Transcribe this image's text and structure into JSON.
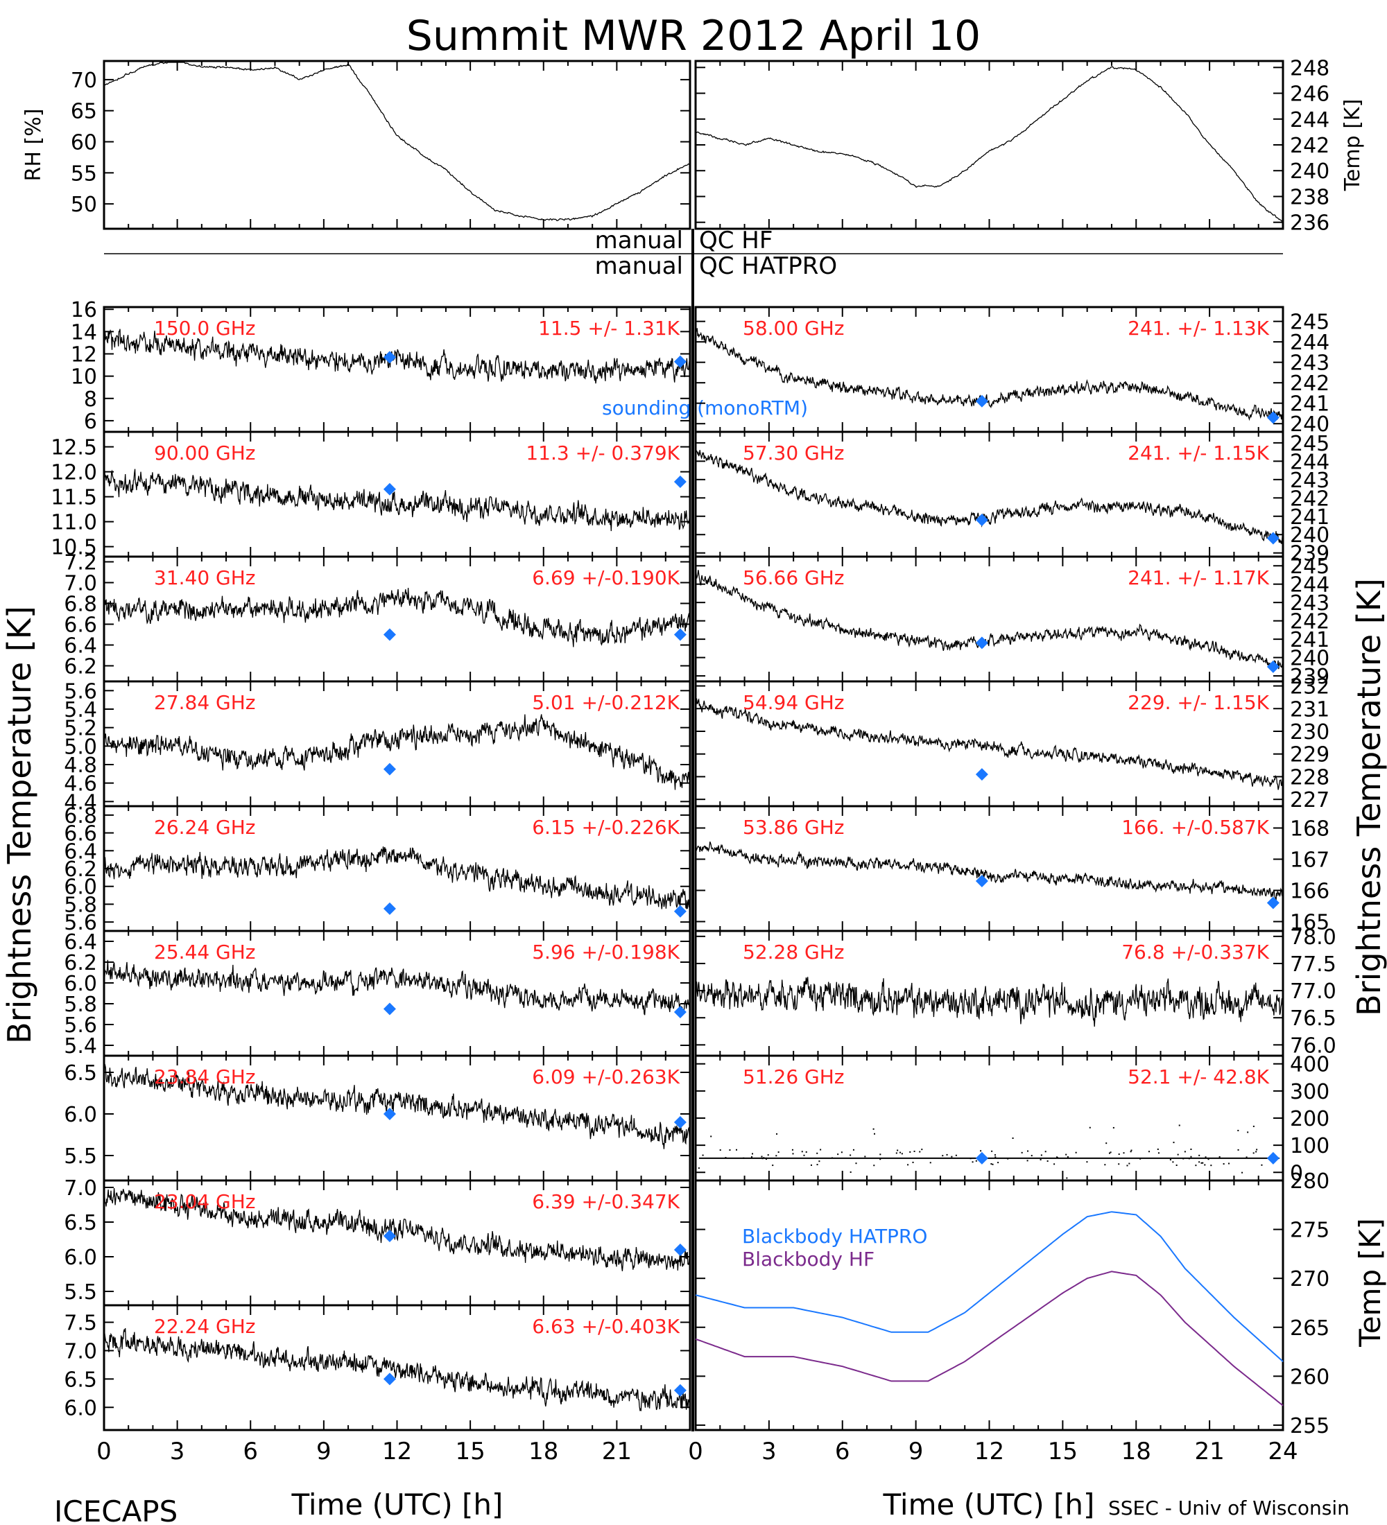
{
  "title": "Summit MWR 2012 April 10",
  "footer_left": "ICECAPS",
  "footer_right": "SSEC - Univ of Wisconsin",
  "x_label": "Time (UTC) [h]",
  "x_ticks": [
    "0",
    "3",
    "6",
    "9",
    "12",
    "15",
    "18",
    "21",
    "24"
  ],
  "left_axis_label": "Brightness Temperature [K]",
  "right_axis_label": "Brightness Temperature [K]",
  "qc": {
    "left_1": "manual",
    "right_1": "QC HF",
    "left_2": "manual",
    "right_2": "QC HATPRO"
  },
  "colors": {
    "annotation": "#ff2020",
    "sounding": "#1a78ff",
    "bb_hatpro": "#1a78ff",
    "bb_hf": "#7b2a8c",
    "trace": "#000000"
  },
  "chart_data": [
    {
      "type": "line",
      "name": "RH",
      "ylabel": "RH [%]",
      "yticks": [
        "50",
        "55",
        "60",
        "65",
        "70"
      ],
      "ylim": [
        46,
        73
      ],
      "x": [
        0,
        1,
        2,
        3,
        4,
        5,
        6,
        7,
        8,
        9,
        10,
        11,
        12,
        13,
        14,
        15,
        16,
        17,
        18,
        19,
        20,
        21,
        22,
        23,
        24
      ],
      "values": [
        69,
        71,
        72.5,
        73,
        72,
        72,
        71.5,
        72,
        70,
        71.5,
        72.5,
        67,
        61,
        58,
        55.5,
        52,
        49,
        48,
        47.5,
        47.5,
        48,
        50,
        52,
        54.5,
        56.5
      ]
    },
    {
      "type": "line",
      "name": "Temp",
      "ylabel": "Temp [K]",
      "yticks": [
        "236",
        "238",
        "240",
        "242",
        "244",
        "246",
        "248"
      ],
      "ylim": [
        235.5,
        248.5
      ],
      "x": [
        0,
        1,
        2,
        3,
        4,
        5,
        6,
        7,
        8,
        9,
        10,
        11,
        12,
        13,
        14,
        15,
        16,
        17,
        18,
        19,
        20,
        21,
        22,
        23,
        24
      ],
      "values": [
        243,
        242.5,
        242,
        242.5,
        242,
        241.5,
        241.3,
        240.8,
        240,
        238.8,
        238.8,
        240,
        241.5,
        242.5,
        244,
        245.5,
        247,
        248,
        247.8,
        246.5,
        244.5,
        242,
        240,
        237.5,
        236
      ]
    },
    {
      "type": "line",
      "freq": "150.0 GHz",
      "stat": "11.5 +/- 1.31K",
      "sounding_label": "sounding (monoRTM)",
      "yticks": [
        "6",
        "8",
        "10",
        "12",
        "14",
        "16"
      ],
      "ylim": [
        5,
        16.2
      ],
      "x": [
        0,
        3,
        6,
        9,
        12,
        15,
        18,
        21,
        24
      ],
      "values": [
        13.5,
        12.8,
        12,
        11.5,
        11.3,
        10.8,
        10.5,
        10.5,
        10.5
      ],
      "sounding": [
        [
          11.7,
          11.7
        ],
        [
          23.6,
          11.3
        ]
      ]
    },
    {
      "type": "line",
      "freq": "90.00 GHz",
      "stat": "11.3 +/- 0.379K",
      "yticks": [
        "10.5",
        "11.0",
        "11.5",
        "12.0",
        "12.5"
      ],
      "ylim": [
        10.3,
        12.8
      ],
      "x": [
        0,
        3,
        6,
        9,
        12,
        15,
        18,
        21,
        24
      ],
      "values": [
        11.8,
        11.75,
        11.6,
        11.45,
        11.35,
        11.3,
        11.2,
        11.1,
        11.05
      ],
      "sounding": [
        [
          11.7,
          11.65
        ],
        [
          23.6,
          11.8
        ]
      ]
    },
    {
      "type": "line",
      "freq": "31.40 GHz",
      "stat": "6.69 +/-0.190K",
      "yticks": [
        "6.2",
        "6.4",
        "6.6",
        "6.8",
        "7.0",
        "7.2"
      ],
      "ylim": [
        6.05,
        7.25
      ],
      "x": [
        0,
        3,
        6,
        9,
        12,
        15,
        18,
        21,
        24
      ],
      "values": [
        6.75,
        6.75,
        6.75,
        6.75,
        6.85,
        6.75,
        6.55,
        6.5,
        6.65
      ],
      "sounding": [
        [
          11.7,
          6.5
        ],
        [
          23.6,
          6.5
        ]
      ]
    },
    {
      "type": "line",
      "freq": "27.84 GHz",
      "stat": "5.01 +/-0.212K",
      "yticks": [
        "4.4",
        "4.6",
        "4.8",
        "5.0",
        "5.2",
        "5.4",
        "5.6"
      ],
      "ylim": [
        4.35,
        5.7
      ],
      "x": [
        0,
        3,
        6,
        9,
        12,
        15,
        18,
        21,
        24
      ],
      "values": [
        5.05,
        5.0,
        4.85,
        4.9,
        5.1,
        5.15,
        5.2,
        4.9,
        4.6
      ],
      "sounding": [
        [
          11.7,
          4.75
        ]
      ]
    },
    {
      "type": "line",
      "freq": "26.24 GHz",
      "stat": "6.15 +/-0.226K",
      "yticks": [
        "5.6",
        "5.8",
        "6.0",
        "6.2",
        "6.4",
        "6.6",
        "6.8"
      ],
      "ylim": [
        5.5,
        6.9
      ],
      "x": [
        0,
        3,
        6,
        9,
        12,
        15,
        18,
        21,
        24
      ],
      "values": [
        6.2,
        6.25,
        6.2,
        6.3,
        6.35,
        6.15,
        6.0,
        5.9,
        5.85
      ],
      "sounding": [
        [
          11.7,
          5.75
        ],
        [
          23.6,
          5.72
        ]
      ]
    },
    {
      "type": "line",
      "freq": "25.44 GHz",
      "stat": "5.96 +/-0.198K",
      "yticks": [
        "5.4",
        "5.6",
        "5.8",
        "6.0",
        "6.2",
        "6.4"
      ],
      "ylim": [
        5.3,
        6.5
      ],
      "x": [
        0,
        3,
        6,
        9,
        12,
        15,
        18,
        21,
        24
      ],
      "values": [
        6.1,
        6.05,
        6.0,
        6.0,
        6.05,
        5.95,
        5.85,
        5.85,
        5.8
      ],
      "sounding": [
        [
          11.7,
          5.75
        ],
        [
          23.6,
          5.72
        ]
      ]
    },
    {
      "type": "line",
      "freq": "23.84 GHz",
      "stat": "6.09 +/-0.263K",
      "yticks": [
        "5.5",
        "6.0",
        "6.5"
      ],
      "ylim": [
        5.2,
        6.7
      ],
      "x": [
        0,
        3,
        6,
        9,
        12,
        15,
        18,
        21,
        24
      ],
      "values": [
        6.45,
        6.35,
        6.25,
        6.15,
        6.15,
        6.05,
        5.95,
        5.85,
        5.75
      ],
      "sounding": [
        [
          11.7,
          6.0
        ],
        [
          23.6,
          5.9
        ]
      ]
    },
    {
      "type": "line",
      "freq": "23.04 GHz",
      "stat": "6.39 +/-0.347K",
      "yticks": [
        "5.5",
        "6.0",
        "6.5",
        "7.0"
      ],
      "ylim": [
        5.3,
        7.1
      ],
      "x": [
        0,
        3,
        6,
        9,
        12,
        15,
        18,
        21,
        24
      ],
      "values": [
        6.9,
        6.75,
        6.55,
        6.5,
        6.4,
        6.2,
        6.1,
        6.0,
        5.9
      ],
      "sounding": [
        [
          11.7,
          6.3
        ],
        [
          23.6,
          6.1
        ]
      ]
    },
    {
      "type": "line",
      "freq": "22.24 GHz",
      "stat": "6.63 +/-0.403K",
      "yticks": [
        "6.0",
        "6.5",
        "7.0",
        "7.5"
      ],
      "ylim": [
        5.6,
        7.8
      ],
      "x": [
        0,
        3,
        6,
        9,
        12,
        15,
        18,
        21,
        24
      ],
      "values": [
        7.2,
        7.1,
        6.9,
        6.8,
        6.7,
        6.45,
        6.3,
        6.2,
        6.15
      ],
      "sounding": [
        [
          11.7,
          6.5
        ],
        [
          23.6,
          6.3
        ]
      ]
    },
    {
      "type": "line",
      "freq": "58.00 GHz",
      "stat": "241. +/- 1.13K",
      "yticks": [
        "240",
        "241",
        "242",
        "243",
        "244",
        "245"
      ],
      "ylim": [
        239.6,
        245.7
      ],
      "x": [
        0,
        2,
        4,
        6,
        8,
        10,
        12,
        14,
        16,
        17,
        18,
        20,
        22,
        24
      ],
      "values": [
        244.5,
        243.2,
        242.2,
        241.8,
        241.5,
        241.1,
        241.1,
        241.6,
        241.8,
        241.7,
        241.8,
        241.3,
        240.7,
        240.3
      ],
      "sounding": [
        [
          11.7,
          241.1
        ],
        [
          23.6,
          240.3
        ]
      ]
    },
    {
      "type": "line",
      "freq": "57.30 GHz",
      "stat": "241. +/- 1.15K",
      "yticks": [
        "239",
        "240",
        "241",
        "242",
        "243",
        "244",
        "245"
      ],
      "ylim": [
        238.8,
        245.6
      ],
      "x": [
        0,
        2,
        4,
        6,
        8,
        10,
        12,
        14,
        16,
        17,
        18,
        20,
        22,
        24
      ],
      "values": [
        244.5,
        243.4,
        242.3,
        241.7,
        241.3,
        240.8,
        240.9,
        241.3,
        241.6,
        241.5,
        241.6,
        241.2,
        240.5,
        239.8
      ],
      "sounding": [
        [
          11.7,
          240.8
        ],
        [
          23.6,
          239.8
        ]
      ]
    },
    {
      "type": "line",
      "freq": "56.66 GHz",
      "stat": "241. +/- 1.17K",
      "yticks": [
        "239",
        "240",
        "241",
        "242",
        "243",
        "244",
        "245"
      ],
      "ylim": [
        238.7,
        245.5
      ],
      "x": [
        0,
        2,
        4,
        6,
        8,
        10,
        12,
        14,
        16,
        17,
        18,
        20,
        22,
        24
      ],
      "values": [
        244.5,
        243.3,
        242.2,
        241.5,
        241.1,
        240.7,
        240.9,
        241.2,
        241.4,
        241.3,
        241.4,
        240.9,
        240.2,
        239.5
      ],
      "sounding": [
        [
          11.7,
          240.8
        ],
        [
          23.6,
          239.5
        ]
      ]
    },
    {
      "type": "line",
      "freq": "54.94 GHz",
      "stat": "229. +/- 1.15K",
      "yticks": [
        "227",
        "228",
        "229",
        "230",
        "231",
        "232"
      ],
      "ylim": [
        226.7,
        232.2
      ],
      "x": [
        0,
        3,
        6,
        9,
        12,
        15,
        18,
        21,
        24
      ],
      "values": [
        231.2,
        230.4,
        229.9,
        229.6,
        229.3,
        229.0,
        228.7,
        228.2,
        227.6
      ],
      "sounding": [
        [
          11.7,
          228.1
        ]
      ]
    },
    {
      "type": "line",
      "freq": "53.86 GHz",
      "stat": "166. +/-0.587K",
      "yticks": [
        "165",
        "166",
        "167",
        "168"
      ],
      "ylim": [
        164.7,
        168.7
      ],
      "x": [
        0,
        3,
        6,
        9,
        12,
        15,
        18,
        21,
        24
      ],
      "values": [
        167.4,
        167.0,
        166.9,
        166.8,
        166.5,
        166.4,
        166.2,
        166.1,
        165.9
      ],
      "sounding": [
        [
          11.7,
          166.3
        ],
        [
          23.6,
          165.6
        ]
      ]
    },
    {
      "type": "line",
      "freq": "52.28 GHz",
      "stat": "76.8 +/-0.337K",
      "yticks": [
        "76.0",
        "76.5",
        "77.0",
        "77.5",
        "78.0"
      ],
      "ylim": [
        75.8,
        78.1
      ],
      "x": [
        0,
        3,
        6,
        9,
        12,
        15,
        18,
        21,
        24
      ],
      "values": [
        77.0,
        76.9,
        76.9,
        76.8,
        76.8,
        76.8,
        76.8,
        76.8,
        76.8
      ],
      "sounding": []
    },
    {
      "type": "line",
      "freq": "51.26 GHz",
      "stat": "52.1 +/- 42.8K",
      "yticks": [
        "0",
        "100",
        "200",
        "300",
        "400"
      ],
      "ylim": [
        -30,
        430
      ],
      "x": [
        0,
        3,
        6,
        9,
        12,
        15,
        18,
        21,
        24
      ],
      "values": [
        52,
        52,
        52,
        52,
        52,
        52,
        52,
        52,
        52
      ],
      "sounding": [
        [
          11.7,
          52
        ],
        [
          23.6,
          52
        ]
      ]
    },
    {
      "type": "line",
      "ylabel": "Temp [K]",
      "yticks": [
        "255",
        "260",
        "265",
        "270",
        "275",
        "280"
      ],
      "ylim": [
        254.5,
        280
      ],
      "series": [
        {
          "name": "Blackbody HATPRO",
          "x": [
            0,
            2,
            4,
            6,
            8,
            9.5,
            11,
            13,
            15,
            16,
            17,
            18,
            19,
            20,
            22,
            24
          ],
          "values": [
            268.3,
            267,
            267,
            266,
            264.5,
            264.5,
            266.5,
            270.5,
            274.5,
            276.3,
            276.8,
            276.5,
            274.3,
            271,
            266,
            261.5
          ]
        },
        {
          "name": "Blackbody HF",
          "x": [
            0,
            2,
            4,
            6,
            8,
            9.5,
            11,
            13,
            15,
            16,
            17,
            18,
            19,
            20,
            22,
            24
          ],
          "values": [
            263.8,
            262,
            262,
            261,
            259.5,
            259.5,
            261.5,
            265,
            268.5,
            270,
            270.7,
            270.3,
            268.3,
            265.5,
            261,
            257
          ]
        }
      ]
    }
  ]
}
